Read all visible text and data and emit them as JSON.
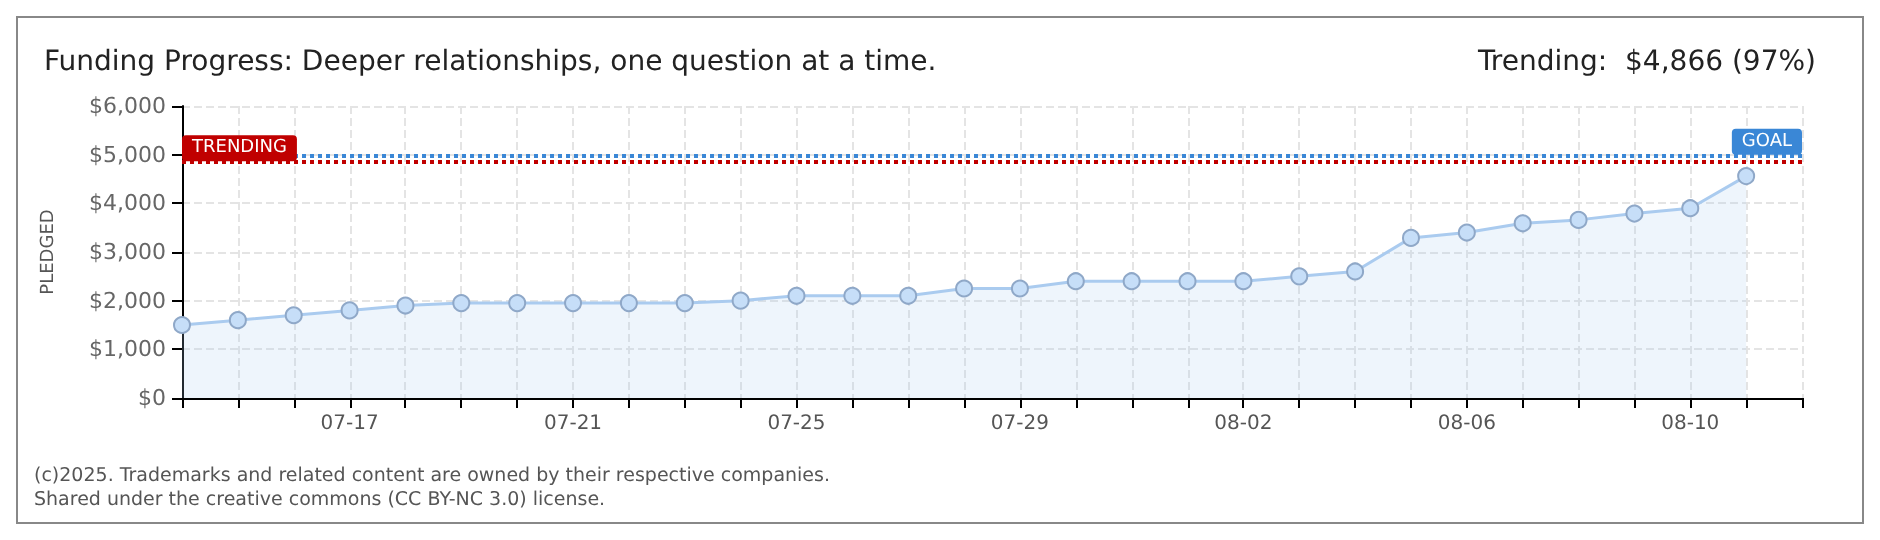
{
  "chart_data": {
    "type": "area",
    "title": "Funding Progress: Deeper relationships, one question at a time.",
    "subtitle": "Trending:  $4,866 (97%)",
    "ylabel": "PLEDGED",
    "x": [
      "--07-14",
      "--07-15",
      "--07-16",
      "--07-17",
      "--07-18",
      "--07-19",
      "--07-20",
      "--07-21",
      "--07-22",
      "--07-23",
      "--07-24",
      "--07-25",
      "--07-26",
      "--07-27",
      "--07-28",
      "--07-29",
      "--07-30",
      "--07-31",
      "--08-01",
      "--08-02",
      "--08-03",
      "--08-04",
      "--08-05",
      "--08-06",
      "--08-07",
      "--08-08",
      "--08-09",
      "--08-10",
      "--08-11"
    ],
    "series": [
      {
        "color": "#aacbef",
        "values": [
          1500,
          1600,
          1700,
          1800,
          1900,
          1950,
          1950,
          1950,
          1950,
          1950,
          2000,
          2100,
          2100,
          2100,
          2250,
          2250,
          2400,
          2400,
          2400,
          2400,
          2500,
          2600,
          3290,
          3400,
          3590,
          3660,
          3790,
          3900,
          4560
        ]
      }
    ],
    "xlim": [
      "--07-14",
      "--08-12"
    ],
    "xticks": [
      {
        "value": "--07-14",
        "label": null
      },
      {
        "value": "--07-15",
        "label": null
      },
      {
        "value": "--07-16",
        "label": null
      },
      {
        "value": "--07-17",
        "label": "07-17"
      },
      {
        "value": "--07-18",
        "label": null
      },
      {
        "value": "--07-19",
        "label": null
      },
      {
        "value": "--07-20",
        "label": null
      },
      {
        "value": "--07-21",
        "label": "07-21"
      },
      {
        "value": "--07-22",
        "label": null
      },
      {
        "value": "--07-23",
        "label": null
      },
      {
        "value": "--07-24",
        "label": null
      },
      {
        "value": "--07-25",
        "label": "07-25"
      },
      {
        "value": "--07-26",
        "label": null
      },
      {
        "value": "--07-27",
        "label": null
      },
      {
        "value": "--07-28",
        "label": null
      },
      {
        "value": "--07-29",
        "label": "07-29"
      },
      {
        "value": "--07-30",
        "label": null
      },
      {
        "value": "--07-31",
        "label": null
      },
      {
        "value": "--08-01",
        "label": null
      },
      {
        "value": "--08-02",
        "label": "08-02"
      },
      {
        "value": "--08-03",
        "label": null
      },
      {
        "value": "--08-04",
        "label": null
      },
      {
        "value": "--08-05",
        "label": null
      },
      {
        "value": "--08-06",
        "label": "08-06"
      },
      {
        "value": "--08-07",
        "label": null
      },
      {
        "value": "--08-08",
        "label": null
      },
      {
        "value": "--08-09",
        "label": null
      },
      {
        "value": "--08-10",
        "label": "08-10"
      },
      {
        "value": "--08-11",
        "label": null
      },
      {
        "value": "--08-12",
        "label": null
      }
    ],
    "ylim": [
      0,
      6000
    ],
    "yticks": [
      {
        "value": 0,
        "label": "$0"
      },
      {
        "value": 1000,
        "label": "$1,000"
      },
      {
        "value": 2000,
        "label": "$2,000"
      },
      {
        "value": 3000,
        "label": "$3,000"
      },
      {
        "value": 4000,
        "label": "$4,000"
      },
      {
        "value": 5000,
        "label": "$5,000"
      },
      {
        "value": 6000,
        "label": "$6,000"
      }
    ],
    "ref_lines": [
      {
        "axis": "y",
        "value": 5000,
        "label": "GOAL",
        "color": "#3a87d6",
        "line_style": "dotted"
      },
      {
        "axis": "y",
        "value": 4866,
        "label": "TRENDING",
        "color": "#c00000",
        "line_style": "dotted"
      }
    ],
    "grid": true,
    "marker": "circle",
    "annotations": [
      "(c)2025. Trademarks and related content are owned by their respective companies.",
      "Shared under the creative commons (CC BY-NC 3.0) license."
    ]
  }
}
